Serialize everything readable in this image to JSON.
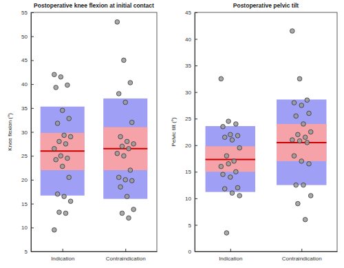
{
  "chart_data": [
    {
      "type": "box",
      "title": "Postoperative knee flexion at initial contact",
      "y_label": "Knee flexion (°)",
      "categories": [
        "Indication",
        "Contraindication"
      ],
      "ylim": [
        5,
        55
      ],
      "yticks": [
        5,
        10,
        15,
        20,
        25,
        30,
        35,
        40,
        45,
        50,
        55
      ],
      "groups": [
        {
          "mean": 26,
          "inner": [
            22,
            29.8
          ],
          "outer": [
            16.7,
            35.3
          ],
          "points": [
            42,
            41.5,
            39.8,
            39.3,
            34.5,
            32.8,
            31.8,
            29.3,
            29,
            28,
            27.5,
            26.5,
            25,
            24.5,
            24.2,
            22.8,
            20.5,
            17,
            16.5,
            15.5,
            13.2,
            13,
            9.5
          ]
        },
        {
          "mean": 26.5,
          "inner": [
            22,
            31
          ],
          "outer": [
            16,
            37
          ],
          "points": [
            53,
            45,
            40.3,
            38,
            36.2,
            32,
            29,
            28,
            27.5,
            27,
            26.5,
            25.5,
            25,
            22,
            20.5,
            20,
            19.8,
            18.5,
            16.5,
            13.8,
            13,
            12
          ]
        }
      ]
    },
    {
      "type": "box",
      "title": "Postoperative pelvic tilt",
      "y_label": "Pelvic tilt (°)",
      "categories": [
        "Indication",
        "Contraindication"
      ],
      "ylim": [
        0,
        45
      ],
      "yticks": [
        0,
        5,
        10,
        15,
        20,
        25,
        30,
        35,
        40,
        45
      ],
      "groups": [
        {
          "mean": 17.3,
          "inner": [
            15,
            19.8
          ],
          "outer": [
            11.2,
            23.6
          ],
          "points": [
            32.5,
            24.5,
            24,
            23.5,
            22,
            21.8,
            21.5,
            21,
            19.5,
            18,
            17,
            16,
            16.5,
            15,
            14.5,
            14,
            12,
            11.8,
            11,
            10.5,
            3.5
          ]
        },
        {
          "mean": 20.5,
          "inner": [
            17,
            24
          ],
          "outer": [
            12.5,
            28.6
          ],
          "points": [
            41.5,
            32.5,
            28.5,
            28,
            27.5,
            26,
            25.5,
            24,
            22.5,
            22,
            21.5,
            21,
            20.8,
            20.5,
            18,
            17,
            16.5,
            12.5,
            12.5,
            10.5,
            9,
            6
          ]
        }
      ]
    }
  ]
}
